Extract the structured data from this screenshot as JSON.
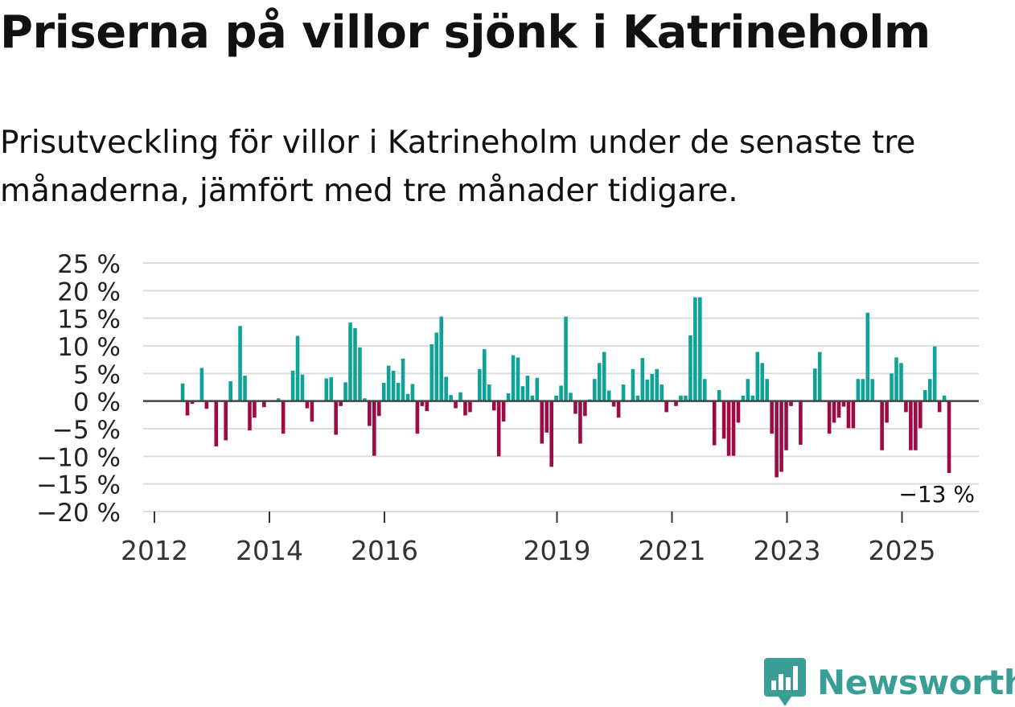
{
  "title": "Priserna på villor sjönk i Katrineholm",
  "subtitle": "Prisutveckling för villor i Katrineholm under de senaste tre månaderna, jämfört med tre månader tidigare.",
  "brand": {
    "name": "Newsworthy",
    "color": "#3a9e97",
    "icon": "newsworthy-logo-icon"
  },
  "colors": {
    "positive": "#0fa398",
    "negative": "#9e0a43",
    "grid": "#dddddd",
    "zero": "#444444",
    "text": "#222222"
  },
  "chart_data": {
    "type": "bar",
    "title": "Priserna på villor sjönk i Katrineholm",
    "xlabel": "",
    "ylabel": "",
    "ylim": [
      -20,
      25
    ],
    "yticks": [
      25,
      20,
      15,
      10,
      5,
      0,
      -5,
      -10,
      -15,
      -20
    ],
    "ytick_labels": [
      "25 %",
      "20 %",
      "15 %",
      "10 %",
      "5 %",
      "0 %",
      "−5 %",
      "−10 %",
      "−15 %",
      "−20 %"
    ],
    "xticks": [
      2012,
      2014,
      2016,
      2019,
      2021,
      2023,
      2025
    ],
    "xtick_labels": [
      "2012",
      "2014",
      "2016",
      "2019",
      "2021",
      "2023",
      "2025"
    ],
    "start": 2012.0,
    "step": 0.0833,
    "start_month": 1,
    "grid": true,
    "annotation": {
      "label": "−13 %",
      "value": -13
    },
    "values": [
      0,
      0,
      0,
      0,
      0,
      3.2,
      -2.6,
      -0.5,
      0,
      6,
      -1.4,
      0,
      -8.2,
      0,
      -7.1,
      3.6,
      0,
      13.6,
      4.6,
      -5.3,
      -3,
      0,
      -1.1,
      0,
      0,
      0.5,
      -5.9,
      0,
      5.5,
      11.8,
      4.8,
      -1.3,
      -3.7,
      0,
      0,
      4.1,
      4.3,
      -6.1,
      -0.9,
      3.4,
      14.2,
      13.2,
      9.7,
      0.5,
      -4.5,
      -9.9,
      -2.7,
      3.3,
      6.4,
      5.5,
      3.3,
      7.7,
      1.3,
      3.1,
      -5.9,
      -0.9,
      -1.8,
      10.3,
      12.4,
      15.3,
      4.4,
      1.1,
      -1.3,
      1.6,
      -2.6,
      -2,
      0,
      5.8,
      9.4,
      3,
      -1.7,
      -10,
      -3.7,
      1.4,
      8.3,
      7.9,
      2.7,
      4.6,
      1,
      4.2,
      -7.7,
      -5.7,
      -11.9,
      1,
      2.8,
      15.3,
      1.5,
      -2.3,
      -7.7,
      -2.7,
      0.3,
      4,
      6.9,
      8.9,
      1.9,
      -1,
      -3,
      3,
      0,
      5.8,
      1,
      7.8,
      3.9,
      4.9,
      5.8,
      3,
      -2,
      0,
      -0.9,
      1,
      1,
      11.9,
      18.8,
      18.8,
      4,
      0,
      -8,
      2,
      -6.8,
      -9.9,
      -9.9,
      -3.9,
      1,
      4,
      1,
      8.9,
      6.9,
      4,
      -5.9,
      -13.8,
      -12.8,
      -8.9,
      -0.9,
      0,
      -7.9,
      0,
      0,
      5.9,
      8.9,
      0,
      -5.9,
      -3.9,
      -3,
      -1,
      -4.9,
      -4.9,
      4,
      4,
      16,
      4,
      0,
      -8.9,
      -3.9,
      5,
      7.9,
      6.9,
      -2,
      -8.9,
      -8.9,
      -4.9,
      2,
      4,
      9.9,
      -2,
      1,
      -13
    ]
  }
}
